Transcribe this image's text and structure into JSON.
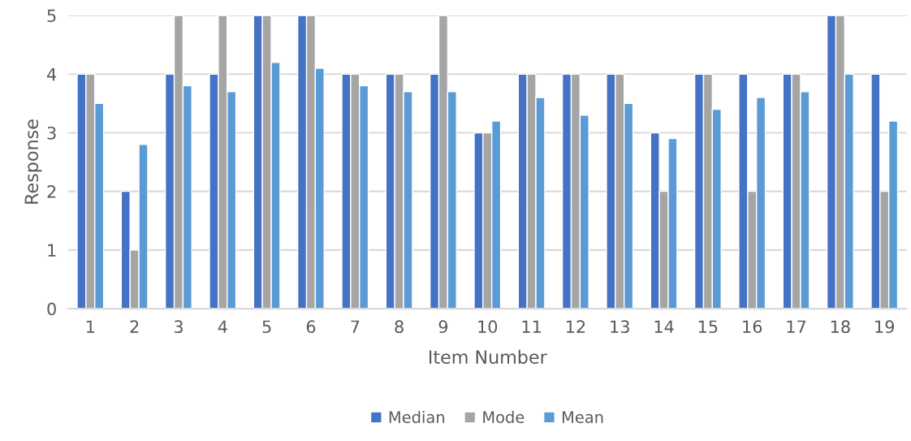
{
  "chart_data": {
    "type": "bar",
    "xlabel": "Item Number",
    "ylabel": "Response",
    "categories": [
      "1",
      "2",
      "3",
      "4",
      "5",
      "6",
      "7",
      "8",
      "9",
      "10",
      "11",
      "12",
      "13",
      "14",
      "15",
      "16",
      "17",
      "18",
      "19"
    ],
    "series": [
      {
        "name": "Median",
        "color": "#4472c4",
        "values": [
          4,
          2,
          4,
          4,
          5,
          5,
          4,
          4,
          4,
          3,
          4,
          4,
          4,
          3,
          4,
          4,
          4,
          5,
          4
        ]
      },
      {
        "name": "Mode",
        "color": "#a5a5a5",
        "values": [
          4,
          1,
          5,
          5,
          5,
          5,
          4,
          4,
          5,
          3,
          4,
          4,
          4,
          2,
          4,
          2,
          4,
          5,
          2
        ]
      },
      {
        "name": "Mean",
        "color": "#5b9bd5",
        "values": [
          3.5,
          2.8,
          3.8,
          3.7,
          4.2,
          4.1,
          3.8,
          3.7,
          3.7,
          3.2,
          3.6,
          3.3,
          3.5,
          2.9,
          3.4,
          3.6,
          3.7,
          4.0,
          3.2
        ]
      }
    ],
    "ylim": [
      0,
      5
    ],
    "yticks": [
      0,
      1,
      2,
      3,
      4,
      5
    ],
    "grid": "y",
    "legend": "bottom"
  }
}
